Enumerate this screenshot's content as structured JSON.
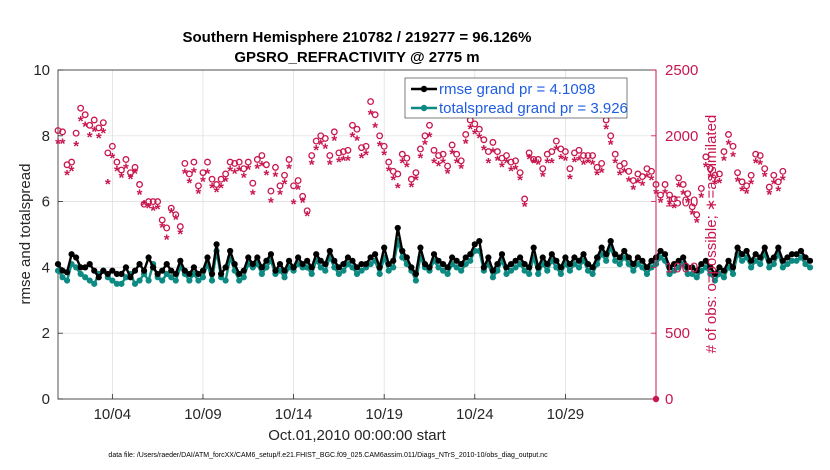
{
  "chart_data": {
    "type": "line",
    "title_lines": [
      "Southern Hemisphere 210782 / 219277 = 96.126%",
      "GPSRO_REFRACTIVITY @ 2775 m"
    ],
    "xlabel": "Oct.01,2010 00:00:00 start",
    "ylabel": "rmse and totalspread",
    "ylabel_right": "# of obs: o=possible; ∗=assimilated",
    "footer": "data file: /Users/raeder/DAI/ATM_forcXX/CAM6_setup/f.e21.FHIST_BGC.f09_025.CAM6assim.011/Diags_NTrS_2010-10/obs_diag_output.nc",
    "xlim": [
      1.0,
      34.0
    ],
    "ylim": [
      0,
      10
    ],
    "ylim_right": [
      0,
      2500
    ],
    "x_ticks": [
      {
        "x": 4,
        "label": "10/04"
      },
      {
        "x": 9,
        "label": "10/09"
      },
      {
        "x": 14,
        "label": "10/14"
      },
      {
        "x": 19,
        "label": "10/19"
      },
      {
        "x": 24,
        "label": "10/24"
      },
      {
        "x": 29,
        "label": "10/29"
      }
    ],
    "y_ticks": [
      {
        "v": 0,
        "label": "0"
      },
      {
        "v": 2,
        "label": "2"
      },
      {
        "v": 4,
        "label": "4"
      },
      {
        "v": 6,
        "label": "6"
      },
      {
        "v": 8,
        "label": "8"
      },
      {
        "v": 10,
        "label": "10"
      }
    ],
    "y_ticks_right": [
      {
        "v": 0,
        "label": "0"
      },
      {
        "v": 500,
        "label": "500"
      },
      {
        "v": 1000,
        "label": "1000"
      },
      {
        "v": 1500,
        "label": "1500"
      },
      {
        "v": 2000,
        "label": "2000"
      },
      {
        "v": 2500,
        "label": "2500"
      }
    ],
    "grid": true,
    "legend_position": "top-right",
    "colors": {
      "rmse": "#000000",
      "spread": "#0d8a82",
      "obs": "#c8174f",
      "legend_text": "#1f5de0"
    },
    "x_start": 1.0,
    "x_step": 0.25,
    "series": [
      {
        "name": "rmse grand pr = 4.1098",
        "axis": "left",
        "values": [
          4.1,
          3.9,
          3.85,
          4.4,
          4.3,
          4.0,
          4.0,
          4.1,
          3.9,
          3.7,
          3.9,
          3.8,
          3.9,
          3.8,
          3.8,
          4.0,
          3.7,
          3.9,
          4.1,
          3.9,
          4.3,
          4.0,
          3.8,
          3.9,
          4.1,
          3.9,
          3.8,
          4.2,
          3.9,
          3.8,
          4.0,
          3.8,
          3.9,
          4.3,
          3.8,
          4.7,
          3.8,
          4.0,
          4.5,
          4.1,
          3.8,
          3.9,
          4.3,
          4.1,
          4.3,
          4.0,
          4.2,
          4.4,
          3.9,
          4.1,
          3.9,
          4.2,
          4.0,
          4.3,
          4.1,
          4.2,
          4.0,
          4.4,
          4.2,
          4.1,
          4.5,
          4.2,
          4.0,
          4.1,
          4.3,
          4.2,
          4.0,
          4.1,
          4.1,
          4.3,
          4.4,
          4.0,
          4.6,
          4.1,
          4.2,
          5.2,
          4.5,
          4.3,
          4.0,
          3.8,
          4.6,
          4.1,
          4.0,
          4.4,
          4.2,
          4.1,
          4.0,
          4.3,
          4.2,
          4.1,
          4.3,
          4.4,
          4.7,
          4.8,
          4.0,
          4.3,
          3.9,
          4.1,
          4.4,
          4.0,
          4.1,
          4.2,
          4.3,
          4.1,
          4.0,
          4.6,
          4.0,
          4.3,
          4.1,
          4.4,
          4.2,
          4.0,
          4.3,
          4.1,
          4.3,
          4.2,
          4.4,
          4.1,
          4.0,
          4.3,
          4.6,
          4.4,
          4.8,
          4.4,
          4.3,
          4.5,
          4.3,
          4.1,
          4.3,
          4.2,
          4.0,
          4.2,
          4.3,
          4.5,
          4.4,
          4.0,
          4.1,
          4.2,
          4.3,
          4.0,
          4.0,
          3.9,
          4.1,
          4.2,
          4.0,
          3.8,
          4.0,
          3.9,
          4.2,
          4.0,
          4.6,
          4.4,
          4.5,
          4.2,
          4.4,
          4.3,
          4.6,
          4.2,
          4.3,
          4.6,
          4.2,
          4.3,
          4.4,
          4.4,
          4.5,
          4.3,
          4.2
        ]
      },
      {
        "name": "totalspread grand pr = 3.926",
        "axis": "left",
        "values": [
          3.9,
          3.7,
          3.6,
          4.1,
          4.0,
          3.8,
          3.7,
          3.6,
          3.5,
          3.8,
          3.9,
          3.7,
          3.6,
          3.5,
          3.5,
          3.7,
          3.8,
          3.5,
          3.6,
          3.8,
          3.6,
          4.1,
          3.7,
          3.6,
          3.8,
          3.7,
          3.6,
          4.0,
          3.8,
          3.6,
          3.8,
          3.6,
          3.7,
          4.1,
          3.6,
          4.5,
          3.7,
          3.6,
          4.3,
          3.9,
          3.6,
          3.7,
          4.1,
          4.0,
          4.1,
          3.8,
          4.0,
          4.2,
          3.8,
          3.9,
          3.7,
          4.0,
          3.9,
          4.1,
          4.0,
          4.0,
          3.8,
          4.2,
          4.0,
          3.9,
          4.3,
          4.0,
          3.8,
          3.9,
          4.1,
          4.0,
          3.8,
          3.9,
          4.0,
          4.1,
          4.2,
          3.8,
          4.3,
          3.9,
          4.0,
          4.8,
          4.3,
          4.1,
          3.9,
          3.6,
          4.3,
          4.0,
          3.9,
          4.2,
          4.0,
          3.9,
          3.8,
          4.1,
          4.0,
          3.9,
          4.1,
          4.2,
          4.5,
          4.5,
          3.9,
          4.1,
          3.7,
          3.9,
          4.2,
          3.8,
          3.9,
          4.0,
          4.1,
          3.9,
          3.8,
          4.3,
          3.8,
          4.1,
          3.9,
          4.2,
          4.0,
          3.8,
          4.1,
          3.9,
          4.1,
          4.0,
          4.2,
          3.9,
          3.8,
          4.1,
          4.4,
          4.2,
          4.6,
          4.2,
          4.1,
          4.3,
          4.1,
          3.9,
          4.1,
          4.0,
          3.8,
          4.0,
          4.1,
          4.3,
          4.2,
          3.8,
          3.9,
          4.0,
          4.1,
          3.8,
          3.8,
          3.7,
          3.9,
          4.0,
          3.8,
          3.6,
          3.8,
          3.7,
          4.0,
          3.8,
          4.4,
          4.2,
          4.3,
          4.0,
          4.2,
          4.1,
          4.4,
          4.0,
          4.1,
          4.4,
          4.0,
          4.1,
          4.2,
          4.2,
          4.3,
          4.1,
          4.0
        ]
      },
      {
        "name": "possible obs (o)",
        "axis": "right",
        "values": [
          2040,
          2030,
          1780,
          1800,
          2020,
          2210,
          2160,
          2080,
          2120,
          2060,
          2100,
          1870,
          1920,
          1800,
          1740,
          1820,
          1720,
          1760,
          1630,
          1480,
          1500,
          1500,
          1500,
          1360,
          1300,
          1450,
          1400,
          1310,
          1790,
          1710,
          1800,
          1620,
          1720,
          1800,
          1670,
          1630,
          1670,
          1710,
          1800,
          1790,
          1800,
          1750,
          1800,
          1640,
          1820,
          1850,
          1780,
          1580,
          1760,
          1620,
          1700,
          1820,
          1620,
          1660,
          1540,
          1430,
          1850,
          1960,
          2000,
          1980,
          1850,
          2030,
          1870,
          1880,
          1890,
          2080,
          2050,
          1910,
          1920,
          2260,
          2160,
          2000,
          1920,
          1800,
          1730,
          1710,
          1860,
          1830,
          1670,
          1720,
          1900,
          2000,
          2080,
          1890,
          1850,
          1860,
          1770,
          1930,
          1860,
          1810,
          2010,
          2120,
          2090,
          2050,
          1970,
          1880,
          1950,
          1880,
          1830,
          1850,
          1800,
          1810,
          1720,
          1520,
          1870,
          1820,
          1820,
          1750,
          1860,
          1880,
          1960,
          1900,
          1880,
          1750,
          1870,
          1890,
          1850,
          1850,
          1850,
          1760,
          1790,
          2120,
          2000,
          1860,
          1770,
          1790,
          1730,
          1660,
          1710,
          1690,
          1750,
          1730,
          1630,
          1550,
          1630,
          1550,
          1520,
          1680,
          1630,
          1560,
          1460,
          1400,
          1600,
          1840,
          1750,
          1700,
          1710,
          1880,
          2010,
          1920,
          1720,
          1650,
          1620,
          1700,
          1860,
          1850,
          1750,
          1610,
          1700,
          1650,
          1730
        ]
      },
      {
        "name": "assimilated obs (∗)",
        "axis": "right",
        "values": [
          1950,
          1950,
          1710,
          1740,
          1930,
          2120,
          2080,
          2000,
          2040,
          1990,
          2030,
          1640,
          1840,
          1740,
          1690,
          1760,
          1680,
          1720,
          1560,
          1480,
          1460,
          1440,
          1450,
          1310,
          1220,
          1420,
          1370,
          1260,
          1720,
          1650,
          1730,
          1570,
          1660,
          1720,
          1610,
          1580,
          1610,
          1660,
          1740,
          1720,
          1740,
          1690,
          1750,
          1560,
          1760,
          1780,
          1710,
          1500,
          1700,
          1560,
          1640,
          1760,
          1490,
          1600,
          1500,
          1400,
          1790,
          1900,
          1940,
          1910,
          1790,
          1970,
          1810,
          1820,
          1820,
          2000,
          1970,
          1840,
          1860,
          2170,
          2070,
          1930,
          1860,
          1740,
          1670,
          1610,
          1800,
          1770,
          1620,
          1670,
          1840,
          1940,
          2000,
          1800,
          1780,
          1800,
          1720,
          1870,
          1800,
          1760,
          1950,
          2060,
          2020,
          1990,
          1900,
          1800,
          1880,
          1820,
          1770,
          1800,
          1740,
          1750,
          1670,
          1470,
          1830,
          1800,
          1790,
          1700,
          1800,
          1800,
          1900,
          1830,
          1820,
          1680,
          1810,
          1820,
          1790,
          1800,
          1790,
          1710,
          1730,
          2060,
          1940,
          1800,
          1710,
          1730,
          1660,
          1600,
          1650,
          1630,
          1690,
          1670,
          1570,
          1500,
          1570,
          1490,
          1460,
          1620,
          1560,
          1500,
          1410,
          1350,
          1540,
          1770,
          1690,
          1640,
          1650,
          1820,
          1940,
          1850,
          1660,
          1590,
          1570,
          1640,
          1800,
          1790,
          1700,
          1560,
          1640,
          1590,
          1670
        ]
      }
    ]
  }
}
